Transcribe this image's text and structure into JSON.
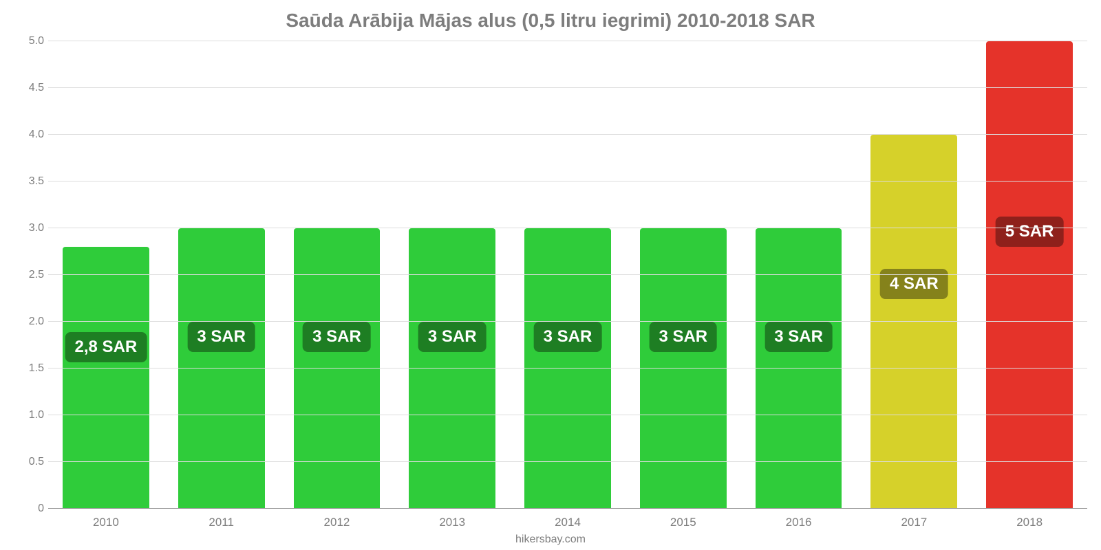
{
  "chart": {
    "type": "bar",
    "title": "Saūda Arābija Mājas alus (0,5 litru iegrimi) 2010-2018 SAR",
    "title_color": "#7d7d7d",
    "title_fontsize": 28,
    "background_color": "#ffffff",
    "ylim": [
      0,
      5.0
    ],
    "ytick_step": 0.5,
    "ytick_labels": [
      "0",
      "0.5",
      "1.0",
      "1.5",
      "2.0",
      "2.5",
      "3.0",
      "3.5",
      "4.0",
      "4.5",
      "5.0"
    ],
    "ytick_color": "#7d7d7d",
    "ytick_fontsize": 16,
    "grid_color": "#dddddd",
    "baseline_color": "#999999",
    "xlabel_color": "#7d7d7d",
    "xlabel_fontsize": 17,
    "bar_width_pct": 75,
    "bar_label_fontsize": 24,
    "categories": [
      "2010",
      "2011",
      "2012",
      "2013",
      "2014",
      "2015",
      "2016",
      "2017",
      "2018"
    ],
    "values": [
      2.8,
      3,
      3,
      3,
      3,
      3,
      3,
      4,
      5
    ],
    "value_labels": [
      "2,8 SAR",
      "3 SAR",
      "3 SAR",
      "3 SAR",
      "3 SAR",
      "3 SAR",
      "3 SAR",
      "4 SAR",
      "5 SAR"
    ],
    "bar_colors": [
      "#2fcc3a",
      "#2fcc3a",
      "#2fcc3a",
      "#2fcc3a",
      "#2fcc3a",
      "#2fcc3a",
      "#2fcc3a",
      "#d6d12a",
      "#e5332a"
    ],
    "bar_label_bg": [
      "#1e7e23",
      "#1e7e23",
      "#1e7e23",
      "#1e7e23",
      "#1e7e23",
      "#1e7e23",
      "#1e7e23",
      "#85821b",
      "#8f201b"
    ],
    "attribution": "hikersbay.com",
    "attribution_color": "#7d7d7d",
    "attribution_fontsize": 16
  }
}
